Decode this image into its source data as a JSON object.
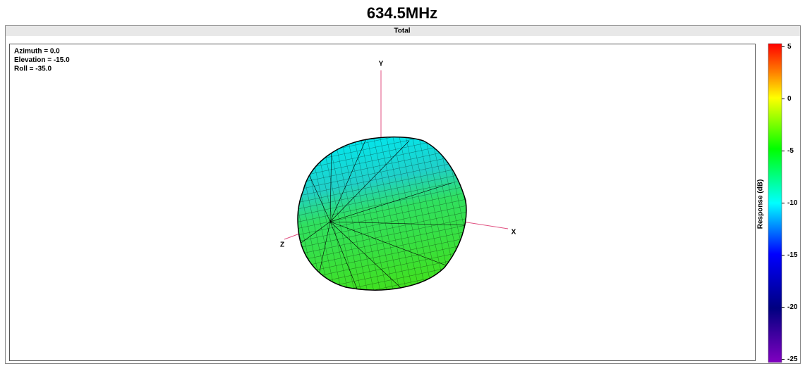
{
  "header": {
    "title": "634.5MHz"
  },
  "panel": {
    "title": "Total"
  },
  "view": {
    "lines": [
      "Azimuth = 0.0",
      "Elevation = -15.0",
      "Roll = -35.0"
    ]
  },
  "axes": {
    "x": "X",
    "y": "Y",
    "z": "Z"
  },
  "colorbar": {
    "label": "Response (dB)",
    "range": [
      -25.3,
      5.3
    ],
    "ticks": [
      5,
      0,
      -5,
      -10,
      -15,
      -20,
      -25
    ]
  }
}
